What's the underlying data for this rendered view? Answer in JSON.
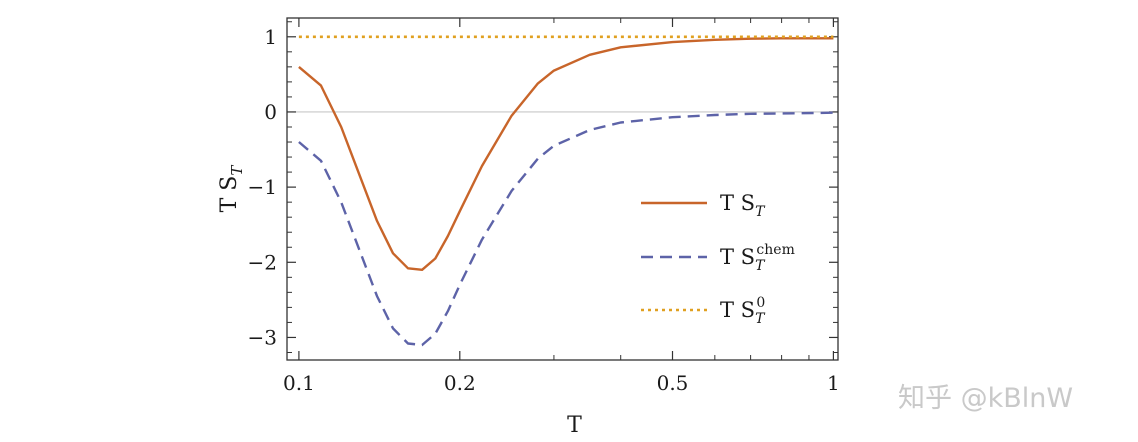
{
  "chart_data": {
    "type": "line",
    "xlabel": "T",
    "ylabel": "T S",
    "ylabel_sub": "T",
    "xscale": "log",
    "xlim": [
      0.095,
      1.02
    ],
    "ylim": [
      -3.3,
      1.25
    ],
    "xticks": [
      {
        "value": 0.1,
        "label": "0.1"
      },
      {
        "value": 0.2,
        "label": "0.2"
      },
      {
        "value": 0.5,
        "label": "0.5"
      },
      {
        "value": 1,
        "label": "1"
      }
    ],
    "yticks": [
      {
        "value": 1,
        "label": "1"
      },
      {
        "value": 0,
        "label": "0"
      },
      {
        "value": -1,
        "label": "−1"
      },
      {
        "value": -2,
        "label": "−2"
      },
      {
        "value": -3,
        "label": "−3"
      }
    ],
    "grid": false,
    "zero_line": true,
    "legend_position": "right",
    "series": [
      {
        "name": "T S",
        "name_sub": "T",
        "name_sup": "",
        "color": "#c8652a",
        "dash": "solid",
        "x": [
          0.1,
          0.11,
          0.12,
          0.13,
          0.14,
          0.15,
          0.16,
          0.17,
          0.18,
          0.19,
          0.2,
          0.22,
          0.25,
          0.28,
          0.3,
          0.35,
          0.4,
          0.5,
          0.6,
          0.7,
          0.8,
          1.0
        ],
        "y": [
          0.6,
          0.35,
          -0.2,
          -0.85,
          -1.45,
          -1.88,
          -2.08,
          -2.1,
          -1.95,
          -1.65,
          -1.32,
          -0.72,
          -0.05,
          0.38,
          0.55,
          0.76,
          0.86,
          0.93,
          0.96,
          0.975,
          0.98,
          0.98
        ]
      },
      {
        "name": "T S",
        "name_sub": "T",
        "name_sup": "chem",
        "color": "#5d63a8",
        "dash": "dashed",
        "x": [
          0.1,
          0.11,
          0.12,
          0.13,
          0.14,
          0.15,
          0.16,
          0.17,
          0.18,
          0.19,
          0.2,
          0.22,
          0.25,
          0.28,
          0.3,
          0.35,
          0.4,
          0.5,
          0.6,
          0.7,
          0.8,
          1.0
        ],
        "y": [
          -0.4,
          -0.65,
          -1.2,
          -1.85,
          -2.45,
          -2.88,
          -3.08,
          -3.1,
          -2.95,
          -2.65,
          -2.3,
          -1.7,
          -1.05,
          -0.62,
          -0.45,
          -0.24,
          -0.14,
          -0.07,
          -0.04,
          -0.025,
          -0.02,
          -0.01
        ]
      },
      {
        "name": "T S",
        "name_sub": "T",
        "name_sup": "0",
        "color": "#e0a020",
        "dash": "dotted",
        "x": [
          0.1,
          1.0
        ],
        "y": [
          1,
          1
        ]
      }
    ]
  },
  "watermark": "知乎 @kBlnW"
}
